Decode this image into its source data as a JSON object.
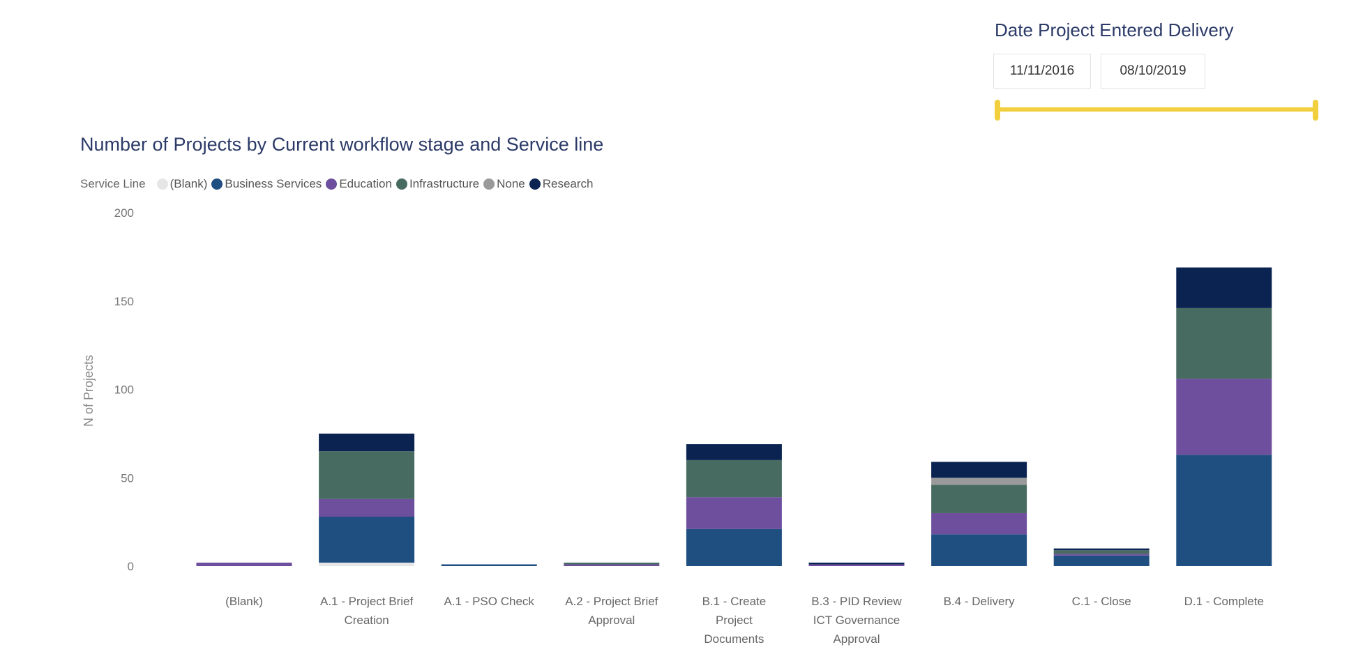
{
  "slicer": {
    "title": "Date Project Entered Delivery",
    "start_date": "11/11/2016",
    "end_date": "08/10/2019",
    "accent_color": "#f2cf3d"
  },
  "chart_data": {
    "type": "bar",
    "stacked": true,
    "title": "Number of Projects by Current workflow stage and Service line",
    "legend_title": "Service Line",
    "legend_position": "top-left",
    "xlabel": "",
    "ylabel": "N of Projects",
    "ylim": [
      0,
      200
    ],
    "yticks": [
      "200",
      "150",
      "100",
      "50",
      "0"
    ],
    "ytick_values": [
      200,
      150,
      100,
      50,
      0
    ],
    "grid": false,
    "categories": [
      [
        "(Blank)"
      ],
      [
        "A.1 - Project Brief",
        "Creation"
      ],
      [
        "A.1 - PSO Check"
      ],
      [
        "A.2 - Project Brief",
        "Approval"
      ],
      [
        "B.1 - Create",
        "Project",
        "Documents"
      ],
      [
        "B.3 - PID Review",
        "ICT Governance",
        "Approval"
      ],
      [
        "B.4 - Delivery"
      ],
      [
        "C.1 - Close"
      ],
      [
        "D.1 - Complete"
      ]
    ],
    "series": [
      {
        "name": "(Blank)",
        "color": "#e6e6e6",
        "values": [
          0,
          2,
          0,
          0,
          0,
          0,
          0,
          0,
          0
        ]
      },
      {
        "name": "Business Services",
        "color": "#1f4e80",
        "values": [
          0,
          26,
          1,
          0,
          21,
          0,
          18,
          6,
          63
        ]
      },
      {
        "name": "Education",
        "color": "#6e4f9e",
        "values": [
          2,
          10,
          0,
          1,
          18,
          1,
          12,
          1,
          43
        ]
      },
      {
        "name": "Infrastructure",
        "color": "#476b61",
        "values": [
          0,
          27,
          0,
          1,
          21,
          0,
          16,
          2,
          40
        ]
      },
      {
        "name": "None",
        "color": "#9a9a9a",
        "values": [
          0,
          0,
          0,
          0,
          0,
          0,
          4,
          0,
          0
        ]
      },
      {
        "name": "Research",
        "color": "#0b2351",
        "values": [
          0,
          10,
          0,
          0,
          9,
          1,
          9,
          1,
          23
        ]
      }
    ]
  }
}
